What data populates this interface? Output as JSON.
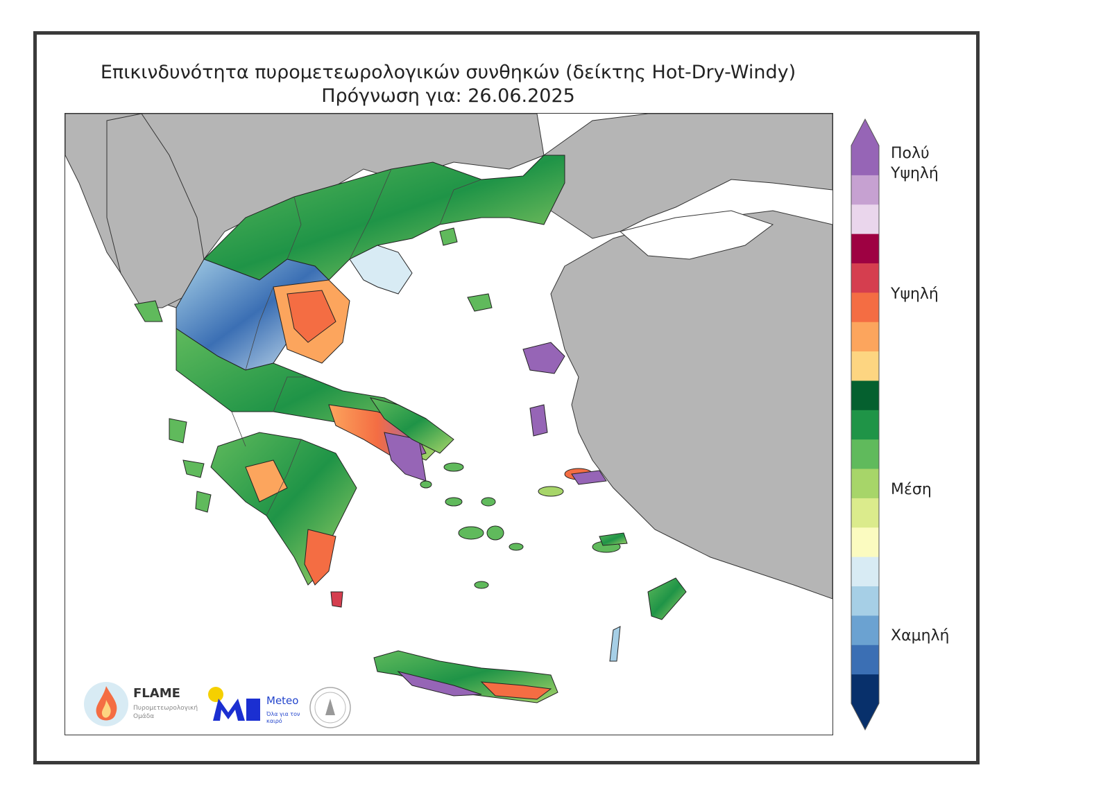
{
  "title": {
    "line1": "Επικινδυνότητα πυρομετεωρολογικών συνθηκών (δείκτης Hot-Dry-Windy)",
    "line2": "Πρόγνωση για: 26.06.2025"
  },
  "legend": {
    "colors": [
      "#08306b",
      "#3b6fb4",
      "#6ba2d1",
      "#a6cfe6",
      "#d8ebf4",
      "#fbfbc0",
      "#dbeb8c",
      "#a7d569",
      "#60ba5c",
      "#1f9447",
      "#05602f",
      "#fdd581",
      "#fca55d",
      "#f46d43",
      "#d53e4f",
      "#9e0142",
      "#ead6ec",
      "#c6a1d1",
      "#9665b6"
    ],
    "labels": {
      "very_high": "Πολύ\nΥψηλή",
      "very_high_l1": "Πολύ",
      "very_high_l2": "Υψηλή",
      "high": "Υψηλή",
      "medium": "Μέση",
      "low": "Χαμηλή"
    }
  },
  "logos": {
    "flame_name": "FLAME",
    "flame_sub": "Πυρομετεωρολογική Ομάδα",
    "meteo_name": "Meteo",
    "meteo_sub": "Όλα για τον καιρό"
  },
  "map_colors": {
    "land_other": "#b5b5b5",
    "sea": "#ffffff",
    "border": "#333333"
  }
}
